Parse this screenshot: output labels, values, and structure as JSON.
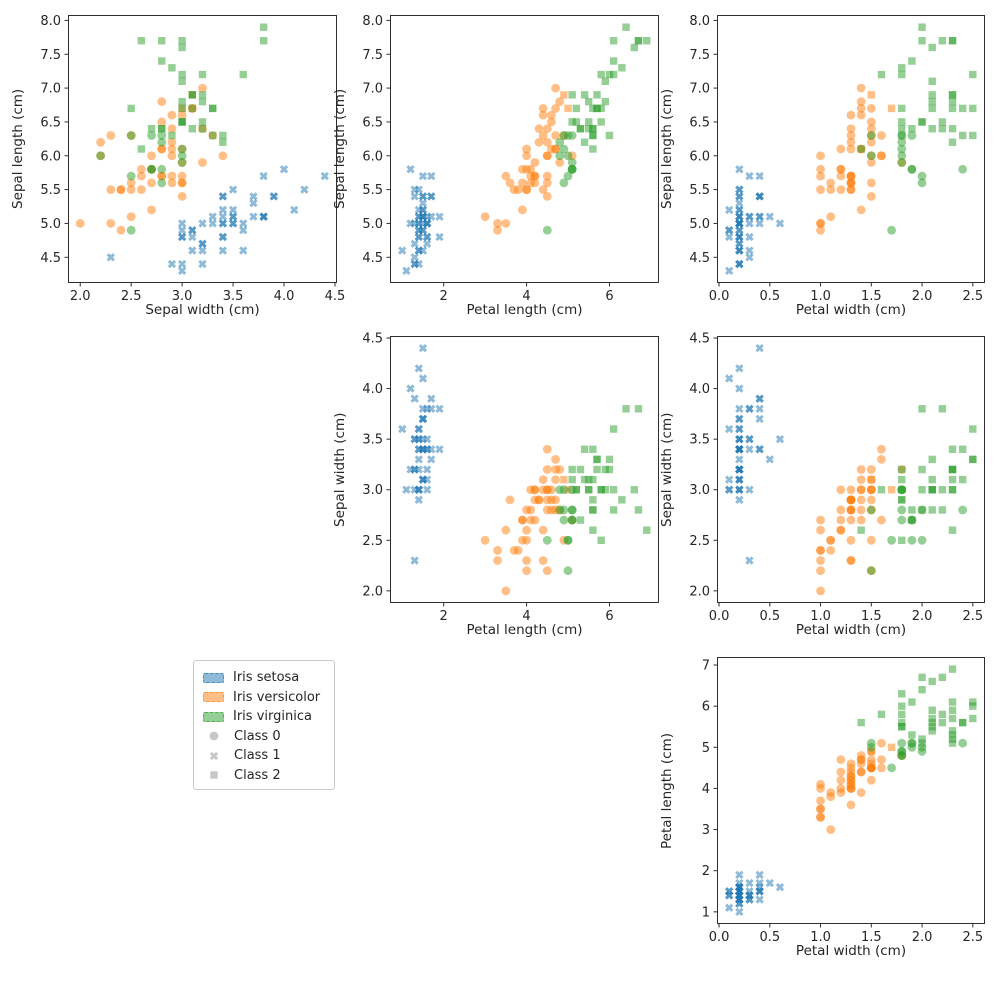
{
  "chart_data": {
    "type": "scatter",
    "title": "",
    "grid": false,
    "background": "#ffffff",
    "features": [
      "Sepal length (cm)",
      "Sepal width (cm)",
      "Petal length (cm)",
      "Petal width (cm)"
    ],
    "axis_limits": [
      [
        4.12,
        8.08
      ],
      [
        1.88,
        4.52
      ],
      [
        0.705,
        7.195
      ],
      [
        -0.02,
        2.62
      ]
    ],
    "species": [
      {
        "label": "Iris setosa",
        "color": "#1f77b4"
      },
      {
        "label": "Iris versicolor",
        "color": "#ff7f0e"
      },
      {
        "label": "Iris virginica",
        "color": "#2ca02c"
      }
    ],
    "classes": [
      {
        "label": "Class 0",
        "marker": "circle"
      },
      {
        "label": "Class 1",
        "marker": "x"
      },
      {
        "label": "Class 2",
        "marker": "square"
      }
    ],
    "marker_alpha": 0.5,
    "subplots": [
      {
        "id": "sepal-width-vs-sepal-length",
        "xf": 1,
        "yf": 0,
        "xlabel": "Sepal width (cm)",
        "ylabel": "Sepal length (cm)",
        "xticks": [
          2.0,
          2.5,
          3.0,
          3.5,
          4.0,
          4.5
        ],
        "xtick_labels": [
          "2.0",
          "2.5",
          "3.0",
          "3.5",
          "4.0",
          "4.5"
        ],
        "yticks": [
          4.5,
          5.0,
          5.5,
          6.0,
          6.5,
          7.0,
          7.5,
          8.0
        ],
        "ytick_labels": [
          "4.5",
          "5.0",
          "5.5",
          "6.0",
          "6.5",
          "7.0",
          "7.5",
          "8.0"
        ]
      },
      {
        "id": "petal-length-vs-sepal-length",
        "xf": 2,
        "yf": 0,
        "xlabel": "Petal length (cm)",
        "ylabel": "Sepal length (cm)",
        "xticks": [
          2,
          4,
          6
        ],
        "xtick_labels": [
          "2",
          "4",
          "6"
        ],
        "yticks": [
          4.5,
          5.0,
          5.5,
          6.0,
          6.5,
          7.0,
          7.5,
          8.0
        ],
        "ytick_labels": [
          "4.5",
          "5.0",
          "5.5",
          "6.0",
          "6.5",
          "7.0",
          "7.5",
          "8.0"
        ]
      },
      {
        "id": "petal-width-vs-sepal-length",
        "xf": 3,
        "yf": 0,
        "xlabel": "Petal width (cm)",
        "ylabel": "Sepal length (cm)",
        "xticks": [
          0.0,
          0.5,
          1.0,
          1.5,
          2.0,
          2.5
        ],
        "xtick_labels": [
          "0.0",
          "0.5",
          "1.0",
          "1.5",
          "2.0",
          "2.5"
        ],
        "yticks": [
          4.5,
          5.0,
          5.5,
          6.0,
          6.5,
          7.0,
          7.5,
          8.0
        ],
        "ytick_labels": [
          "4.5",
          "5.0",
          "5.5",
          "6.0",
          "6.5",
          "7.0",
          "7.5",
          "8.0"
        ]
      },
      {
        "id": "petal-length-vs-sepal-width",
        "xf": 2,
        "yf": 1,
        "xlabel": "Petal length (cm)",
        "ylabel": "Sepal width (cm)",
        "xticks": [
          2,
          4,
          6
        ],
        "xtick_labels": [
          "2",
          "4",
          "6"
        ],
        "yticks": [
          2.0,
          2.5,
          3.0,
          3.5,
          4.0,
          4.5
        ],
        "ytick_labels": [
          "2.0",
          "2.5",
          "3.0",
          "3.5",
          "4.0",
          "4.5"
        ]
      },
      {
        "id": "petal-width-vs-sepal-width",
        "xf": 3,
        "yf": 1,
        "xlabel": "Petal width (cm)",
        "ylabel": "Sepal width (cm)",
        "xticks": [
          0.0,
          0.5,
          1.0,
          1.5,
          2.0,
          2.5
        ],
        "xtick_labels": [
          "0.0",
          "0.5",
          "1.0",
          "1.5",
          "2.0",
          "2.5"
        ],
        "yticks": [
          2.0,
          2.5,
          3.0,
          3.5,
          4.0,
          4.5
        ],
        "ytick_labels": [
          "2.0",
          "2.5",
          "3.0",
          "3.5",
          "4.0",
          "4.5"
        ]
      },
      {
        "id": "petal-width-vs-petal-length",
        "xf": 3,
        "yf": 2,
        "xlabel": "Petal width (cm)",
        "ylabel": "Petal length (cm)",
        "xticks": [
          0.0,
          0.5,
          1.0,
          1.5,
          2.0,
          2.5
        ],
        "xtick_labels": [
          "0.0",
          "0.5",
          "1.0",
          "1.5",
          "2.0",
          "2.5"
        ],
        "yticks": [
          1,
          2,
          3,
          4,
          5,
          6,
          7
        ],
        "ytick_labels": [
          "1",
          "2",
          "3",
          "4",
          "5",
          "6",
          "7"
        ]
      }
    ],
    "legend": {
      "entries": [
        {
          "label": "Iris setosa",
          "swatch": "patch",
          "color": "#1f77b4"
        },
        {
          "label": "Iris versicolor",
          "swatch": "patch",
          "color": "#ff7f0e"
        },
        {
          "label": "Iris virginica",
          "swatch": "patch",
          "color": "#2ca02c"
        },
        {
          "label": "Class 0",
          "swatch": "marker",
          "marker": "circle",
          "color": "#999999"
        },
        {
          "label": "Class 1",
          "swatch": "marker",
          "marker": "x",
          "color": "#999999"
        },
        {
          "label": "Class 2",
          "swatch": "marker",
          "marker": "square",
          "color": "#999999"
        }
      ]
    },
    "points": [
      [
        5.1,
        3.5,
        1.4,
        0.2,
        0,
        1
      ],
      [
        4.9,
        3.0,
        1.4,
        0.2,
        0,
        1
      ],
      [
        4.7,
        3.2,
        1.3,
        0.2,
        0,
        1
      ],
      [
        4.6,
        3.1,
        1.5,
        0.2,
        0,
        1
      ],
      [
        5.0,
        3.6,
        1.4,
        0.2,
        0,
        1
      ],
      [
        5.4,
        3.9,
        1.7,
        0.4,
        0,
        1
      ],
      [
        4.6,
        3.4,
        1.4,
        0.3,
        0,
        1
      ],
      [
        5.0,
        3.4,
        1.5,
        0.2,
        0,
        1
      ],
      [
        4.4,
        2.9,
        1.4,
        0.2,
        0,
        1
      ],
      [
        4.9,
        3.1,
        1.5,
        0.1,
        0,
        1
      ],
      [
        5.4,
        3.7,
        1.5,
        0.2,
        0,
        1
      ],
      [
        4.8,
        3.4,
        1.6,
        0.2,
        0,
        1
      ],
      [
        4.8,
        3.0,
        1.4,
        0.1,
        0,
        1
      ],
      [
        4.3,
        3.0,
        1.1,
        0.1,
        0,
        1
      ],
      [
        5.8,
        4.0,
        1.2,
        0.2,
        0,
        1
      ],
      [
        5.7,
        4.4,
        1.5,
        0.4,
        0,
        1
      ],
      [
        5.4,
        3.9,
        1.3,
        0.4,
        0,
        1
      ],
      [
        5.1,
        3.5,
        1.4,
        0.3,
        0,
        1
      ],
      [
        5.7,
        3.8,
        1.7,
        0.3,
        0,
        1
      ],
      [
        5.1,
        3.8,
        1.5,
        0.3,
        0,
        1
      ],
      [
        5.4,
        3.4,
        1.7,
        0.2,
        0,
        1
      ],
      [
        5.1,
        3.7,
        1.5,
        0.4,
        0,
        1
      ],
      [
        4.6,
        3.6,
        1.0,
        0.2,
        0,
        1
      ],
      [
        5.1,
        3.3,
        1.7,
        0.5,
        0,
        1
      ],
      [
        4.8,
        3.4,
        1.9,
        0.2,
        0,
        1
      ],
      [
        5.0,
        3.0,
        1.6,
        0.2,
        0,
        1
      ],
      [
        5.0,
        3.4,
        1.6,
        0.4,
        0,
        1
      ],
      [
        5.2,
        3.5,
        1.5,
        0.2,
        0,
        1
      ],
      [
        5.2,
        3.4,
        1.4,
        0.2,
        0,
        1
      ],
      [
        4.7,
        3.2,
        1.6,
        0.2,
        0,
        1
      ],
      [
        4.8,
        3.1,
        1.6,
        0.2,
        0,
        1
      ],
      [
        5.4,
        3.4,
        1.5,
        0.4,
        0,
        1
      ],
      [
        5.2,
        4.1,
        1.5,
        0.1,
        0,
        1
      ],
      [
        5.5,
        4.2,
        1.4,
        0.2,
        0,
        1
      ],
      [
        4.9,
        3.1,
        1.5,
        0.2,
        0,
        1
      ],
      [
        5.0,
        3.2,
        1.2,
        0.2,
        0,
        1
      ],
      [
        5.5,
        3.5,
        1.3,
        0.2,
        0,
        1
      ],
      [
        4.9,
        3.6,
        1.4,
        0.1,
        0,
        1
      ],
      [
        4.4,
        3.0,
        1.3,
        0.2,
        0,
        1
      ],
      [
        5.1,
        3.4,
        1.5,
        0.2,
        0,
        1
      ],
      [
        5.0,
        3.5,
        1.3,
        0.3,
        0,
        1
      ],
      [
        4.5,
        2.3,
        1.3,
        0.3,
        0,
        1
      ],
      [
        4.4,
        3.2,
        1.3,
        0.2,
        0,
        1
      ],
      [
        5.0,
        3.5,
        1.6,
        0.6,
        0,
        1
      ],
      [
        5.1,
        3.8,
        1.9,
        0.4,
        0,
        1
      ],
      [
        4.8,
        3.0,
        1.4,
        0.3,
        0,
        1
      ],
      [
        5.1,
        3.8,
        1.6,
        0.2,
        0,
        1
      ],
      [
        4.6,
        3.2,
        1.4,
        0.2,
        0,
        1
      ],
      [
        5.3,
        3.7,
        1.5,
        0.2,
        0,
        1
      ],
      [
        5.0,
        3.3,
        1.4,
        0.2,
        0,
        1
      ],
      [
        7.0,
        3.2,
        4.7,
        1.4,
        1,
        0
      ],
      [
        6.4,
        3.2,
        4.5,
        1.5,
        1,
        0
      ],
      [
        6.9,
        3.1,
        4.9,
        1.5,
        1,
        2
      ],
      [
        5.5,
        2.3,
        4.0,
        1.3,
        1,
        0
      ],
      [
        6.5,
        2.8,
        4.6,
        1.5,
        1,
        0
      ],
      [
        5.7,
        2.8,
        4.5,
        1.3,
        1,
        0
      ],
      [
        6.3,
        3.3,
        4.7,
        1.6,
        1,
        0
      ],
      [
        4.9,
        2.4,
        3.3,
        1.0,
        1,
        0
      ],
      [
        6.6,
        2.9,
        4.6,
        1.3,
        1,
        0
      ],
      [
        5.2,
        2.7,
        3.9,
        1.4,
        1,
        0
      ],
      [
        5.0,
        2.0,
        3.5,
        1.0,
        1,
        0
      ],
      [
        5.9,
        3.0,
        4.2,
        1.5,
        1,
        0
      ],
      [
        6.0,
        2.2,
        4.0,
        1.0,
        1,
        0
      ],
      [
        6.1,
        2.9,
        4.7,
        1.4,
        1,
        0
      ],
      [
        5.6,
        2.9,
        3.6,
        1.3,
        1,
        0
      ],
      [
        6.7,
        3.1,
        4.4,
        1.4,
        1,
        0
      ],
      [
        5.6,
        3.0,
        4.5,
        1.5,
        1,
        0
      ],
      [
        5.8,
        2.7,
        4.1,
        1.0,
        1,
        0
      ],
      [
        6.2,
        2.2,
        4.5,
        1.5,
        1,
        0
      ],
      [
        5.6,
        2.5,
        3.9,
        1.1,
        1,
        0
      ],
      [
        5.9,
        3.2,
        4.8,
        1.8,
        1,
        0
      ],
      [
        6.1,
        2.8,
        4.0,
        1.3,
        1,
        0
      ],
      [
        6.3,
        2.5,
        4.9,
        1.5,
        1,
        0
      ],
      [
        6.1,
        2.8,
        4.7,
        1.2,
        1,
        0
      ],
      [
        6.4,
        2.9,
        4.3,
        1.3,
        1,
        0
      ],
      [
        6.6,
        3.0,
        4.4,
        1.4,
        1,
        0
      ],
      [
        6.8,
        2.8,
        4.8,
        1.4,
        1,
        0
      ],
      [
        6.7,
        3.0,
        5.0,
        1.7,
        1,
        2
      ],
      [
        6.0,
        2.9,
        4.5,
        1.5,
        1,
        0
      ],
      [
        5.7,
        2.6,
        3.5,
        1.0,
        1,
        0
      ],
      [
        5.5,
        2.4,
        3.8,
        1.1,
        1,
        0
      ],
      [
        5.5,
        2.4,
        3.7,
        1.0,
        1,
        0
      ],
      [
        5.8,
        2.7,
        3.9,
        1.2,
        1,
        0
      ],
      [
        6.0,
        2.7,
        5.1,
        1.6,
        1,
        0
      ],
      [
        5.4,
        3.0,
        4.5,
        1.5,
        1,
        0
      ],
      [
        6.0,
        3.4,
        4.5,
        1.6,
        1,
        0
      ],
      [
        6.7,
        3.1,
        4.7,
        1.5,
        1,
        0
      ],
      [
        6.3,
        2.3,
        4.4,
        1.3,
        1,
        0
      ],
      [
        5.6,
        3.0,
        4.1,
        1.3,
        1,
        0
      ],
      [
        5.5,
        2.5,
        4.0,
        1.3,
        1,
        0
      ],
      [
        5.5,
        2.6,
        4.4,
        1.2,
        1,
        0
      ],
      [
        6.1,
        3.0,
        4.6,
        1.4,
        1,
        0
      ],
      [
        5.8,
        2.6,
        4.0,
        1.2,
        1,
        0
      ],
      [
        5.0,
        2.3,
        3.3,
        1.0,
        1,
        0
      ],
      [
        5.6,
        2.7,
        4.2,
        1.3,
        1,
        0
      ],
      [
        5.7,
        3.0,
        4.2,
        1.2,
        1,
        0
      ],
      [
        5.7,
        2.9,
        4.2,
        1.3,
        1,
        0
      ],
      [
        6.2,
        2.9,
        4.3,
        1.3,
        1,
        0
      ],
      [
        5.1,
        2.5,
        3.0,
        1.1,
        1,
        0
      ],
      [
        5.7,
        2.8,
        4.1,
        1.3,
        1,
        0
      ],
      [
        6.3,
        3.3,
        6.0,
        2.5,
        2,
        2
      ],
      [
        5.8,
        2.7,
        5.1,
        1.9,
        2,
        0
      ],
      [
        7.1,
        3.0,
        5.9,
        2.1,
        2,
        2
      ],
      [
        6.3,
        2.9,
        5.6,
        1.8,
        2,
        2
      ],
      [
        6.5,
        3.0,
        5.8,
        2.2,
        2,
        2
      ],
      [
        7.6,
        3.0,
        6.6,
        2.1,
        2,
        2
      ],
      [
        4.9,
        2.5,
        4.5,
        1.7,
        2,
        0
      ],
      [
        7.3,
        2.9,
        6.3,
        1.8,
        2,
        2
      ],
      [
        6.7,
        2.5,
        5.8,
        1.8,
        2,
        2
      ],
      [
        7.2,
        3.6,
        6.1,
        2.5,
        2,
        2
      ],
      [
        6.5,
        3.2,
        5.1,
        2.0,
        2,
        2
      ],
      [
        6.4,
        2.7,
        5.3,
        1.9,
        2,
        2
      ],
      [
        6.8,
        3.0,
        5.5,
        2.1,
        2,
        2
      ],
      [
        5.7,
        2.5,
        5.0,
        2.0,
        2,
        0
      ],
      [
        5.8,
        2.8,
        5.1,
        2.4,
        2,
        0
      ],
      [
        6.4,
        3.2,
        5.3,
        2.3,
        2,
        2
      ],
      [
        6.5,
        3.0,
        5.5,
        1.8,
        2,
        2
      ],
      [
        7.7,
        3.8,
        6.7,
        2.2,
        2,
        2
      ],
      [
        7.7,
        2.6,
        6.9,
        2.3,
        2,
        2
      ],
      [
        6.0,
        2.2,
        5.0,
        1.5,
        2,
        0
      ],
      [
        6.9,
        3.2,
        5.7,
        2.3,
        2,
        2
      ],
      [
        5.6,
        2.8,
        4.9,
        2.0,
        2,
        0
      ],
      [
        7.7,
        2.8,
        6.7,
        2.0,
        2,
        2
      ],
      [
        6.3,
        2.7,
        4.9,
        1.8,
        2,
        0
      ],
      [
        6.7,
        3.3,
        5.7,
        2.1,
        2,
        2
      ],
      [
        7.2,
        3.2,
        6.0,
        1.8,
        2,
        2
      ],
      [
        6.2,
        2.8,
        4.8,
        1.8,
        2,
        0
      ],
      [
        6.1,
        3.0,
        4.9,
        1.8,
        2,
        0
      ],
      [
        6.4,
        2.8,
        5.6,
        2.1,
        2,
        2
      ],
      [
        7.2,
        3.0,
        5.8,
        1.6,
        2,
        2
      ],
      [
        7.4,
        2.8,
        6.1,
        1.9,
        2,
        2
      ],
      [
        7.9,
        3.8,
        6.4,
        2.0,
        2,
        2
      ],
      [
        6.4,
        2.8,
        5.6,
        2.2,
        2,
        2
      ],
      [
        6.3,
        2.8,
        5.1,
        1.5,
        2,
        0
      ],
      [
        6.1,
        2.6,
        5.6,
        1.4,
        2,
        2
      ],
      [
        7.7,
        3.0,
        6.1,
        2.3,
        2,
        2
      ],
      [
        6.3,
        3.4,
        5.6,
        2.4,
        2,
        2
      ],
      [
        6.4,
        3.1,
        5.5,
        1.8,
        2,
        2
      ],
      [
        6.0,
        3.0,
        4.8,
        1.8,
        2,
        0
      ],
      [
        6.9,
        3.1,
        5.4,
        2.1,
        2,
        2
      ],
      [
        6.7,
        3.1,
        5.6,
        2.4,
        2,
        2
      ],
      [
        6.9,
        3.1,
        5.1,
        2.3,
        2,
        2
      ],
      [
        5.8,
        2.7,
        5.1,
        1.9,
        2,
        0
      ],
      [
        6.8,
        3.2,
        5.9,
        2.3,
        2,
        2
      ],
      [
        6.7,
        3.3,
        5.7,
        2.5,
        2,
        2
      ],
      [
        6.7,
        3.0,
        5.2,
        2.3,
        2,
        2
      ],
      [
        6.3,
        2.5,
        5.0,
        1.9,
        2,
        0
      ],
      [
        6.5,
        3.0,
        5.2,
        2.0,
        2,
        2
      ],
      [
        6.2,
        3.4,
        5.4,
        2.3,
        2,
        2
      ],
      [
        5.9,
        3.0,
        5.1,
        1.8,
        2,
        0
      ]
    ]
  }
}
